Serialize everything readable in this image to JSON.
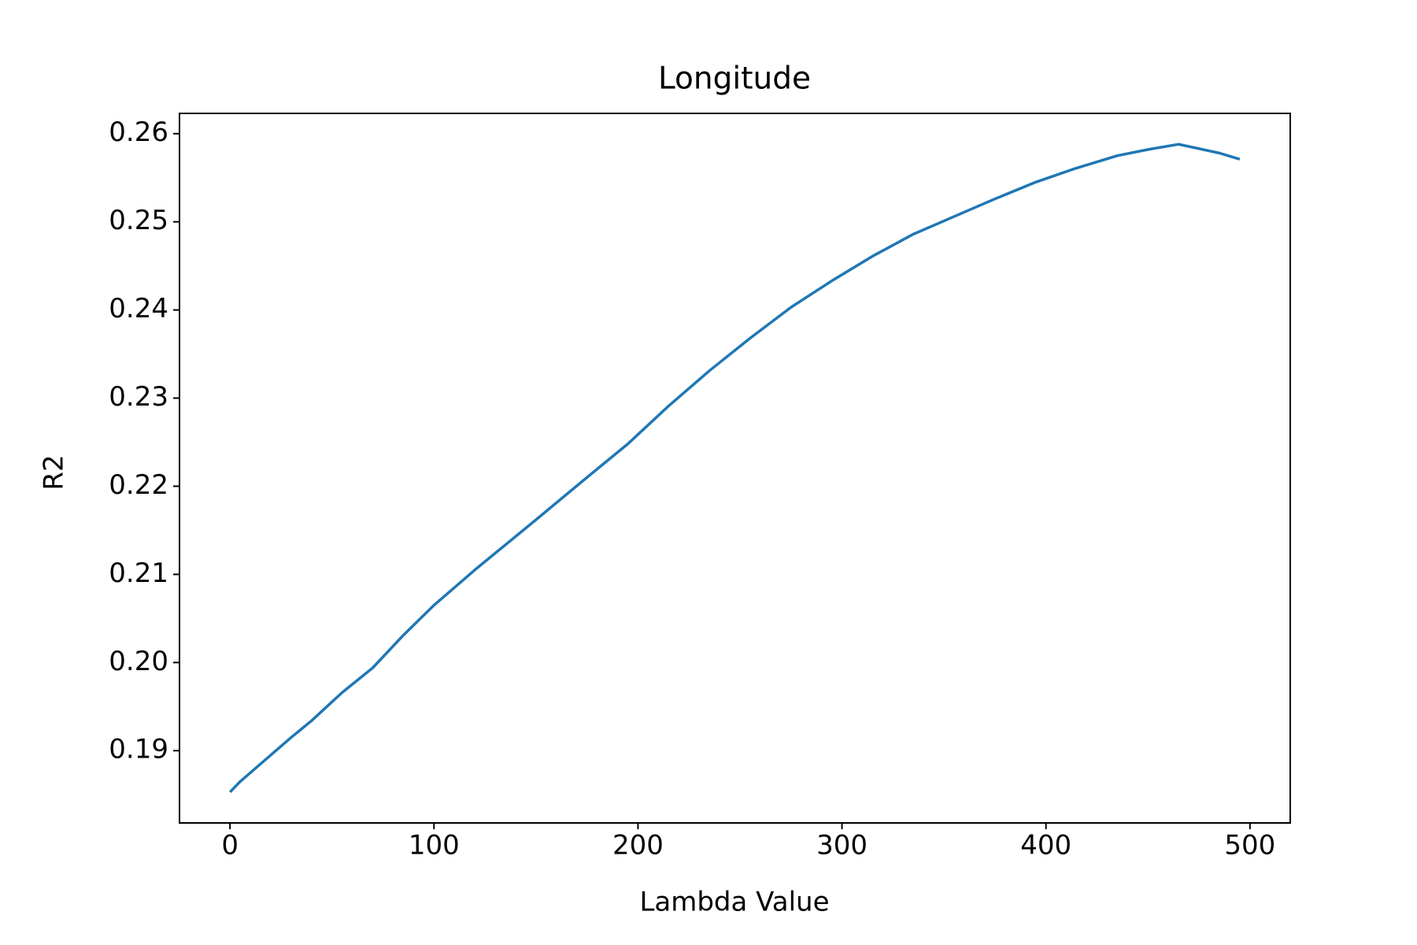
{
  "chart_data": {
    "type": "line",
    "title": "Longitude",
    "x_label": "Lambda Value",
    "y_label": "R2",
    "x": [
      0,
      5,
      20,
      30,
      40,
      55,
      70,
      85,
      100,
      120,
      150,
      175,
      195,
      215,
      235,
      255,
      275,
      295,
      315,
      335,
      355,
      375,
      395,
      415,
      435,
      450,
      465,
      485,
      495
    ],
    "series": [
      {
        "name": "R2",
        "color": "#1f77b4",
        "values": [
          0.1853,
          0.1865,
          0.1895,
          0.1915,
          0.1934,
          0.1966,
          0.1994,
          0.2031,
          0.2065,
          0.2105,
          0.2162,
          0.221,
          0.2248,
          0.2291,
          0.2331,
          0.2368,
          0.2403,
          0.2433,
          0.2461,
          0.2486,
          0.2506,
          0.2526,
          0.2545,
          0.2561,
          0.2575,
          0.2582,
          0.2588,
          0.2578,
          0.2571
        ]
      }
    ],
    "xlim": [
      -24.75,
      519.75
    ],
    "xticks": [
      0,
      100,
      200,
      300,
      400,
      500
    ],
    "ylim": [
      0.1818,
      0.2623
    ],
    "yticks": [
      0.19,
      {
        "value": 0.2,
        "label": "0.20"
      },
      0.21,
      0.22,
      0.23,
      0.24,
      0.25,
      0.26
    ],
    "grid": false
  }
}
